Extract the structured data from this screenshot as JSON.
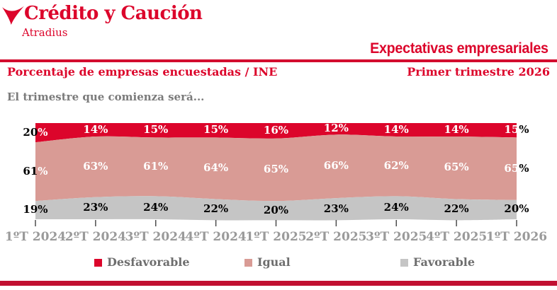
{
  "brand": {
    "name": "Crédito y Caución",
    "subbrand": "Atradius"
  },
  "header": {
    "title": "Expectativas empresariales",
    "left_caption": "Porcentaje de empresas encuestadas / INE",
    "right_caption": "Primer trimestre 2026"
  },
  "intro": "El trimestre que comienza será...",
  "colors": {
    "brand_red": "#dc052b",
    "rule_red": "#d30c2e",
    "bottom_bar_red": "#c11031",
    "pink": "#d99b95",
    "gray_band": "#c5c5c5",
    "subtitle_gray": "#7b7b7b",
    "axis_label_gray": "#9a9a9a",
    "legend_text_gray": "#6e6e6e",
    "tick_gray": "#4d4d4d",
    "label_white": "#ffffff",
    "label_black": "#000000"
  },
  "chart_data": {
    "type": "area",
    "stacked": true,
    "units": "%",
    "title": "El trimestre que comienza será...",
    "categories": [
      "1ºT 2024",
      "2ºT 2024",
      "3ºT 2024",
      "4ºT 2024",
      "1ºT 2025",
      "2ºT 2025",
      "3ºT 2025",
      "4ºT 2025",
      "1ºT 2026"
    ],
    "series": [
      {
        "name": "Desfavorable",
        "color": "#dc052b",
        "values": [
          20,
          14,
          15,
          15,
          16,
          12,
          14,
          14,
          15
        ]
      },
      {
        "name": "Igual",
        "color": "#d99b95",
        "values": [
          61,
          63,
          61,
          64,
          65,
          66,
          62,
          65,
          65
        ]
      },
      {
        "name": "Favorable",
        "color": "#c5c5c5",
        "values": [
          19,
          23,
          24,
          22,
          20,
          23,
          24,
          22,
          20
        ]
      }
    ],
    "ylim": [
      0,
      100
    ],
    "grid": false,
    "legend_position": "bottom",
    "value_labels": true
  }
}
